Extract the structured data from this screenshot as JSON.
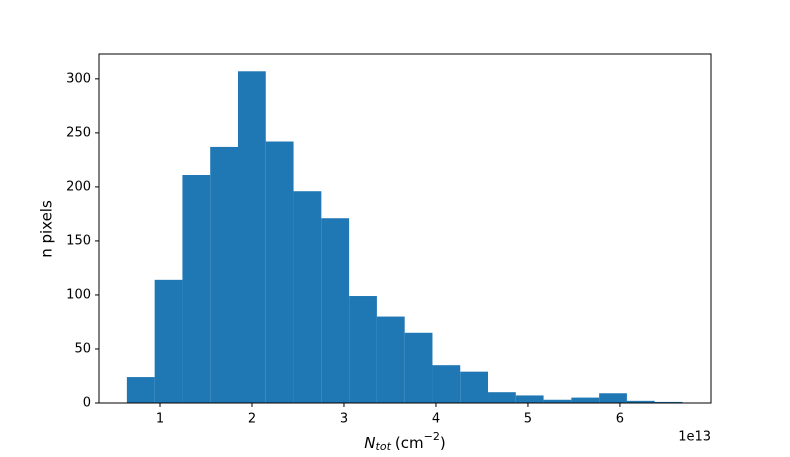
{
  "chart_data": {
    "type": "histogram",
    "x_label": {
      "symbol": "N",
      "subscript": "tot",
      "unit_open": "(cm",
      "exponent": "−2",
      "unit_close": ")"
    },
    "y_label": "n pixels",
    "x_offset_label": "1e13",
    "bins": [
      0.64,
      0.942,
      1.244,
      1.546,
      1.848,
      2.15,
      2.452,
      2.754,
      3.056,
      3.358,
      3.66,
      3.962,
      4.264,
      4.566,
      4.868,
      5.17,
      5.472,
      5.774,
      6.076,
      6.378,
      6.68
    ],
    "values": [
      24,
      114,
      211,
      237,
      307,
      242,
      196,
      171,
      99,
      80,
      65,
      35,
      29,
      10,
      7,
      3,
      5,
      9,
      2,
      1
    ],
    "color": "#1f77b4",
    "xlim": [
      0.337,
      6.99
    ],
    "ylim": [
      0,
      323
    ],
    "xticks": [
      1,
      2,
      3,
      4,
      5,
      6
    ],
    "yticks": [
      0,
      50,
      100,
      150,
      200,
      250,
      300
    ]
  }
}
